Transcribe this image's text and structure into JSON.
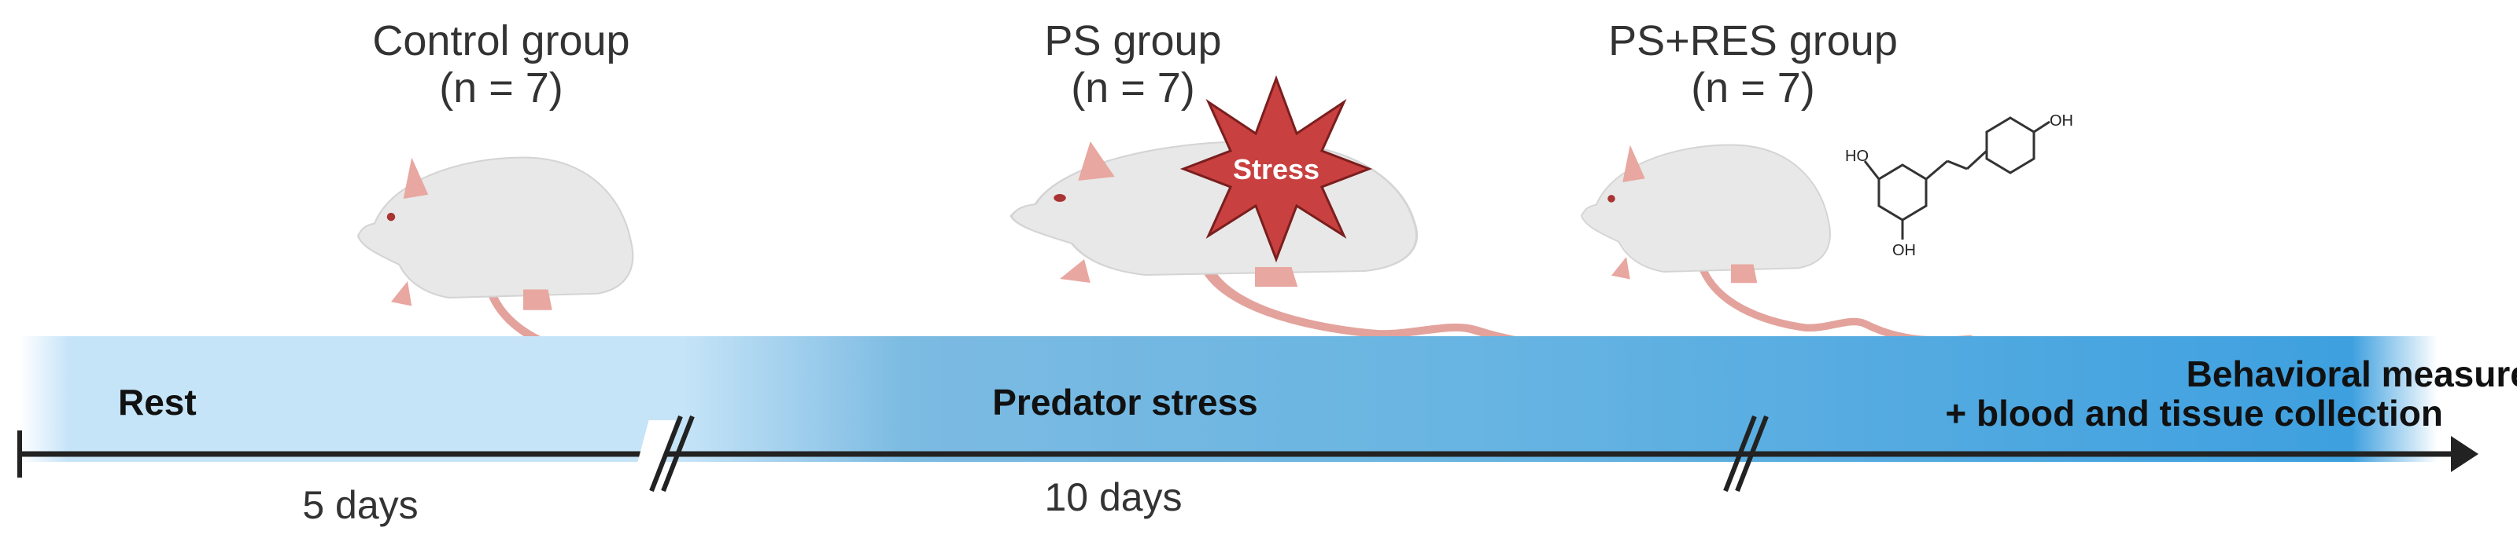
{
  "groups": [
    {
      "name": "Control group",
      "n": "(n = 7)"
    },
    {
      "name": "PS group",
      "n": "(n = 7)",
      "badge": "Stress"
    },
    {
      "name": "PS+RES group",
      "n": "(n = 7)"
    }
  ],
  "molecule": {
    "labels": [
      "HO",
      "OH",
      "OH"
    ]
  },
  "timeline": {
    "phases": [
      "Rest",
      "Predator stress"
    ],
    "final_phase": [
      "Behavioral measures",
      "+ blood and tissue collection"
    ],
    "durations": [
      "5 days",
      "10 days"
    ]
  },
  "colors": {
    "band_light": "#c6e4f8",
    "band_dark": "#3ea0df",
    "stress_star": "#c8403f",
    "axis": "#222222",
    "mouse_body": "#e6e6e6",
    "mouse_tail": "#e3a39c"
  }
}
